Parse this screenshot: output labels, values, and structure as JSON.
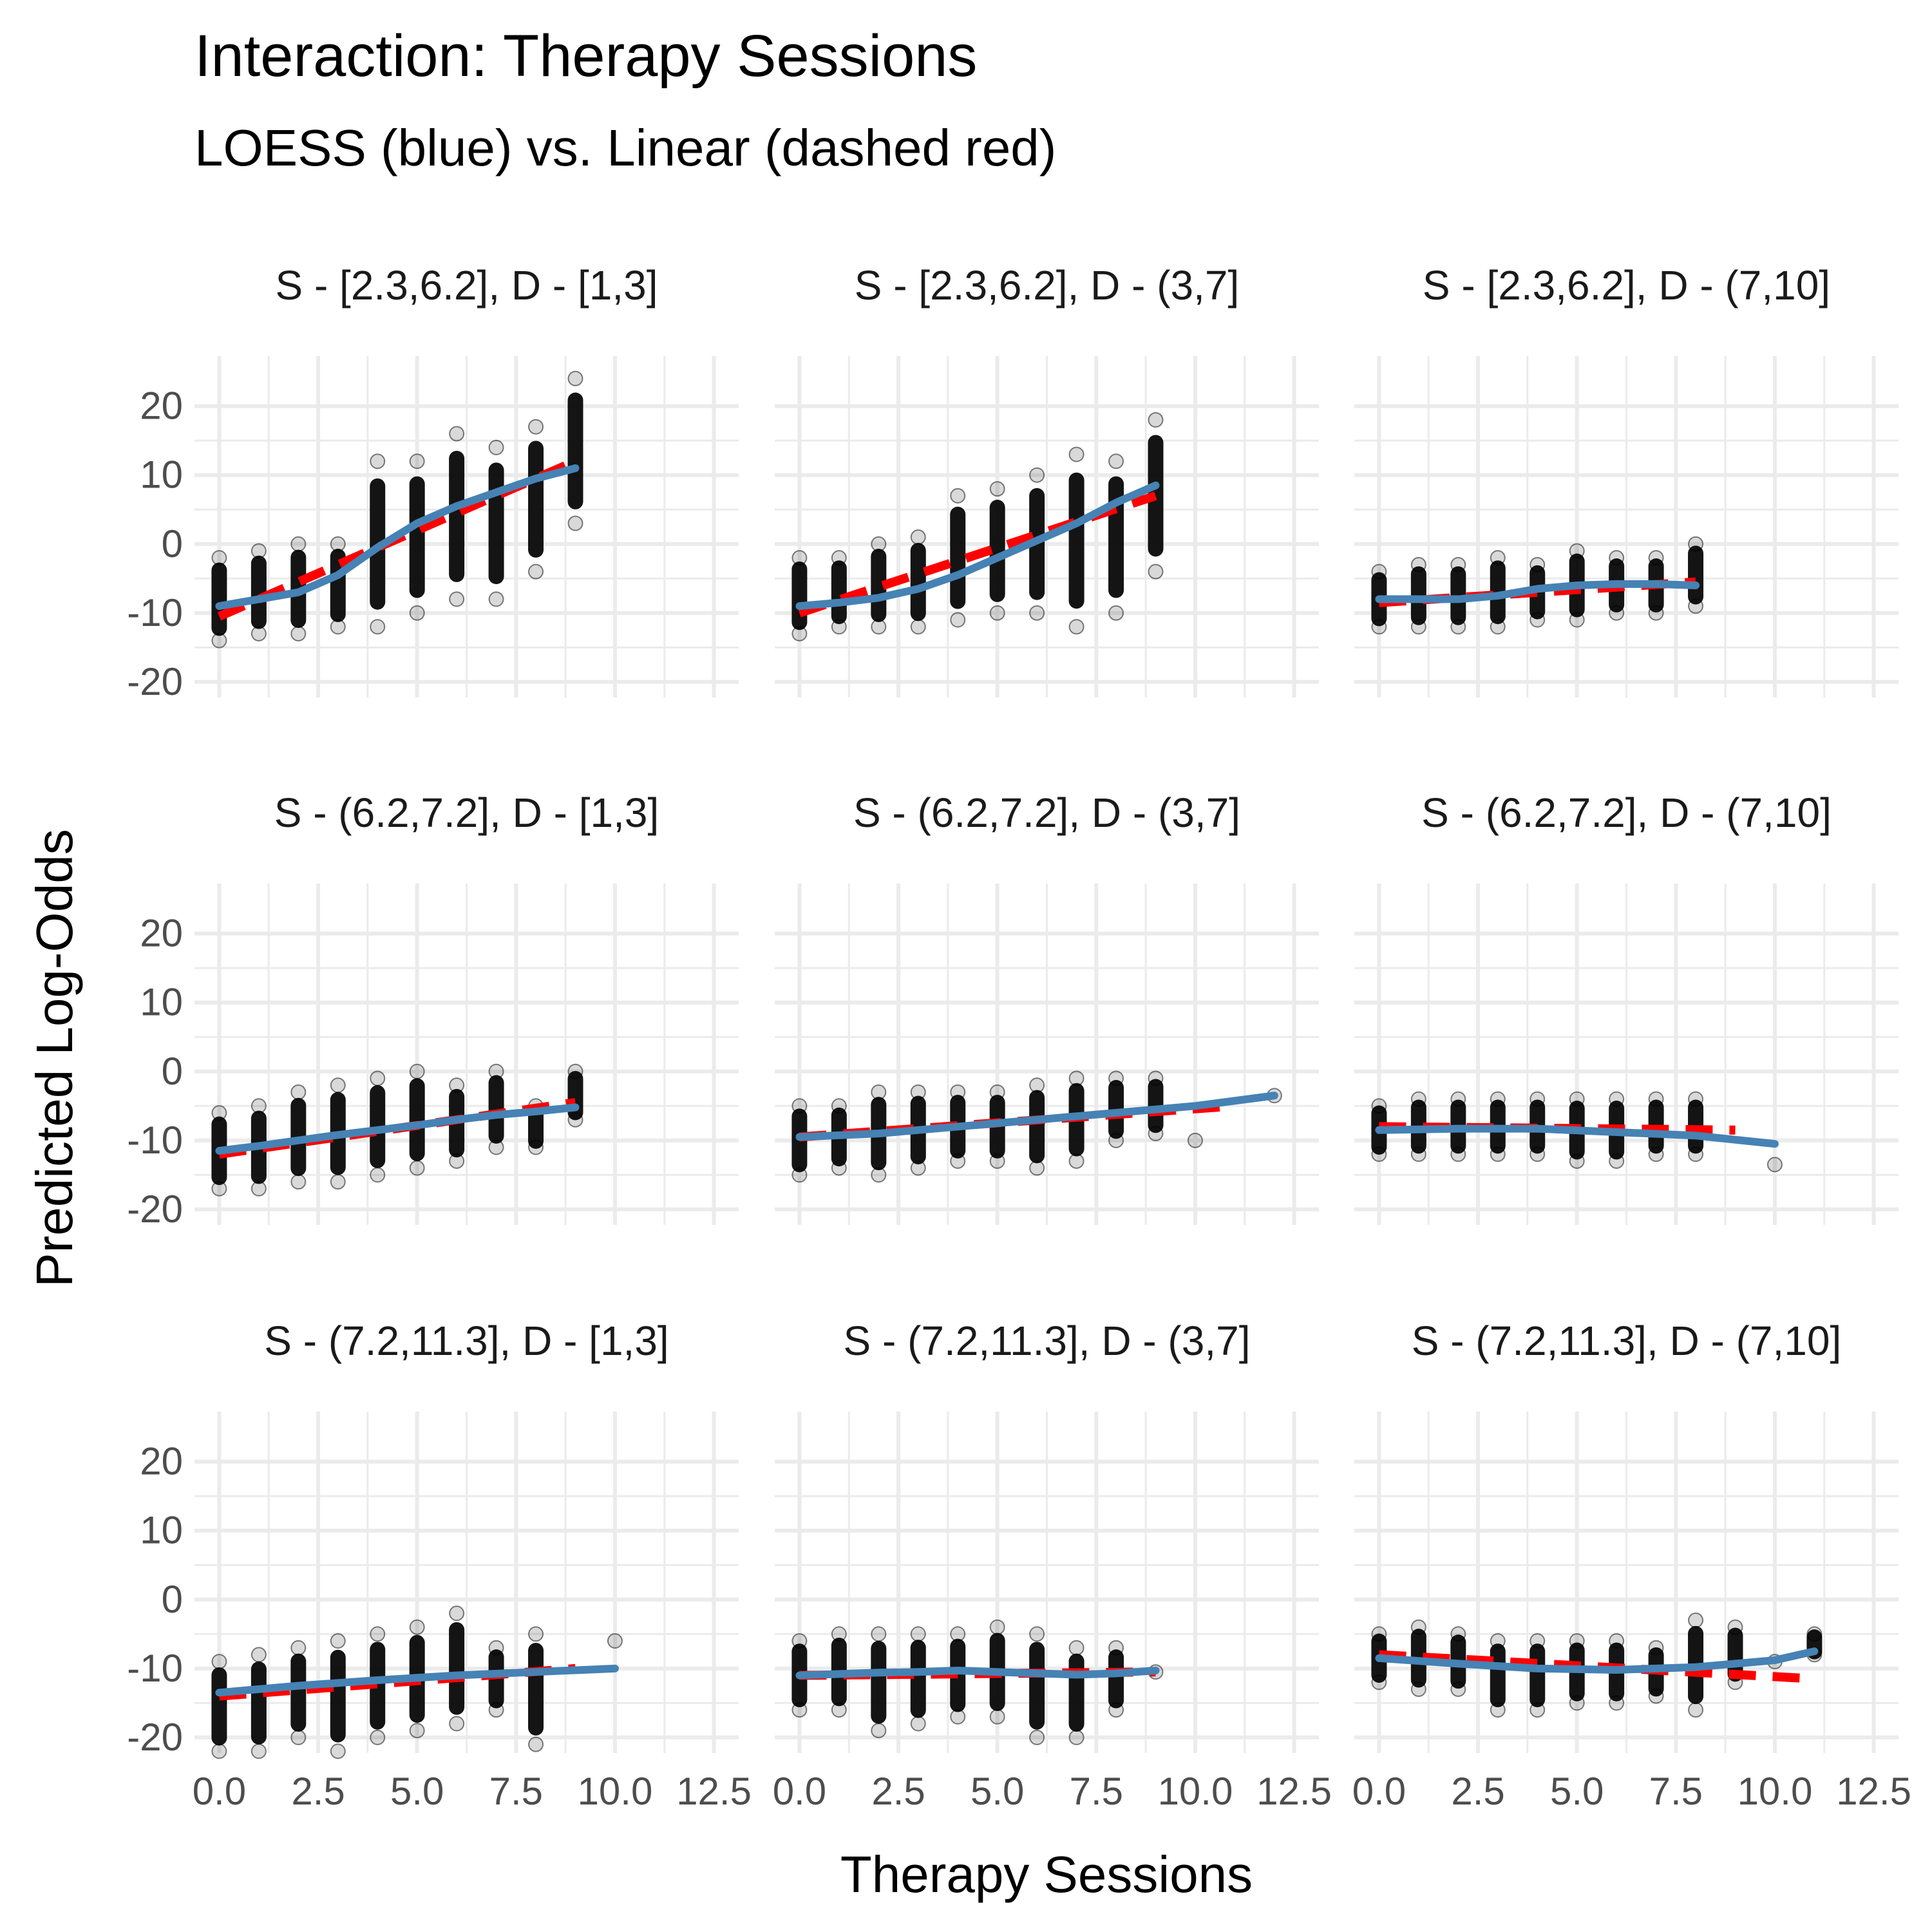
{
  "chart_data": {
    "type": "scatter",
    "title": "Interaction: Therapy Sessions",
    "subtitle": "LOESS (blue) vs. Linear (dashed red)",
    "xlabel": "Therapy Sessions",
    "ylabel": "Predicted Log-Odds",
    "xlim": [
      0,
      12.5
    ],
    "ylim": [
      -20,
      25
    ],
    "x_ticks": [
      "0.0",
      "2.5",
      "5.0",
      "7.5",
      "10.0",
      "12.5"
    ],
    "y_ticks": [
      "20",
      "10",
      "0",
      "-10",
      "-20"
    ],
    "grid": true,
    "colors": {
      "points": "#000000",
      "loess": "#4682b4",
      "linear": "#ff0000",
      "grid": "#ebebeb"
    },
    "facets": [
      {
        "label": "S - [2.3,6.2], D - [1,3]",
        "points": [
          [
            0,
            -14
          ],
          [
            0,
            -2
          ],
          [
            1,
            -13
          ],
          [
            1,
            -1
          ],
          [
            2,
            -13
          ],
          [
            2,
            0
          ],
          [
            3,
            -12
          ],
          [
            3,
            0
          ],
          [
            4,
            -12
          ],
          [
            4,
            12
          ],
          [
            5,
            -10
          ],
          [
            5,
            12
          ],
          [
            6,
            -8
          ],
          [
            6,
            16
          ],
          [
            7,
            -8
          ],
          [
            7,
            14
          ],
          [
            8,
            -4
          ],
          [
            8,
            17
          ],
          [
            9,
            3
          ],
          [
            9,
            24
          ]
        ],
        "loess": [
          [
            0,
            -9
          ],
          [
            1,
            -8
          ],
          [
            2,
            -7
          ],
          [
            3,
            -4.5
          ],
          [
            4,
            -0.5
          ],
          [
            5,
            3
          ],
          [
            6,
            5.5
          ],
          [
            7,
            7.5
          ],
          [
            8,
            9.5
          ],
          [
            9,
            11
          ]
        ],
        "linear": [
          [
            0,
            -10.5
          ],
          [
            9,
            12
          ]
        ]
      },
      {
        "label": "S - [2.3,6.2], D - (3,7]",
        "points": [
          [
            0,
            -13
          ],
          [
            0,
            -2
          ],
          [
            1,
            -12
          ],
          [
            1,
            -2
          ],
          [
            2,
            -12
          ],
          [
            2,
            0
          ],
          [
            3,
            -12
          ],
          [
            3,
            1
          ],
          [
            4,
            -11
          ],
          [
            4,
            7
          ],
          [
            5,
            -10
          ],
          [
            5,
            8
          ],
          [
            6,
            -10
          ],
          [
            6,
            10
          ],
          [
            7,
            -12
          ],
          [
            7,
            13
          ],
          [
            8,
            -10
          ],
          [
            8,
            12
          ],
          [
            9,
            -4
          ],
          [
            9,
            18
          ]
        ],
        "loess": [
          [
            0,
            -9
          ],
          [
            1,
            -8.5
          ],
          [
            2,
            -7.8
          ],
          [
            3,
            -6.5
          ],
          [
            4,
            -4.5
          ],
          [
            5,
            -2
          ],
          [
            6,
            0.5
          ],
          [
            7,
            3
          ],
          [
            8,
            6
          ],
          [
            9,
            8.5
          ]
        ],
        "linear": [
          [
            0,
            -10
          ],
          [
            9,
            7
          ]
        ]
      },
      {
        "label": "S - [2.3,6.2], D - (7,10]",
        "points": [
          [
            0,
            -12
          ],
          [
            0,
            -4
          ],
          [
            1,
            -12
          ],
          [
            1,
            -3
          ],
          [
            2,
            -12
          ],
          [
            2,
            -3
          ],
          [
            3,
            -12
          ],
          [
            3,
            -2
          ],
          [
            4,
            -11
          ],
          [
            4,
            -3
          ],
          [
            5,
            -11
          ],
          [
            5,
            -1
          ],
          [
            6,
            -10
          ],
          [
            6,
            -2
          ],
          [
            7,
            -10
          ],
          [
            7,
            -2
          ],
          [
            8,
            -9
          ],
          [
            8,
            0
          ]
        ],
        "loess": [
          [
            0,
            -8
          ],
          [
            1,
            -8
          ],
          [
            2,
            -8
          ],
          [
            3,
            -7.5
          ],
          [
            4,
            -6.5
          ],
          [
            5,
            -6
          ],
          [
            6,
            -5.8
          ],
          [
            7,
            -5.8
          ],
          [
            8,
            -6
          ]
        ],
        "linear": [
          [
            0,
            -8.5
          ],
          [
            8,
            -5.5
          ]
        ]
      },
      {
        "label": "S - (6.2,7.2], D - [1,3]",
        "points": [
          [
            0,
            -17
          ],
          [
            0,
            -6
          ],
          [
            1,
            -17
          ],
          [
            1,
            -5
          ],
          [
            2,
            -16
          ],
          [
            2,
            -3
          ],
          [
            3,
            -16
          ],
          [
            3,
            -2
          ],
          [
            4,
            -15
          ],
          [
            4,
            -1
          ],
          [
            5,
            -14
          ],
          [
            5,
            0
          ],
          [
            6,
            -13
          ],
          [
            6,
            -2
          ],
          [
            7,
            -11
          ],
          [
            7,
            0
          ],
          [
            8,
            -11
          ],
          [
            8,
            -5
          ],
          [
            9,
            -7
          ],
          [
            9,
            0
          ]
        ],
        "loess": [
          [
            0,
            -11.5
          ],
          [
            1,
            -10.8
          ],
          [
            2,
            -10
          ],
          [
            3,
            -9.2
          ],
          [
            4,
            -8.5
          ],
          [
            5,
            -7.8
          ],
          [
            6,
            -7
          ],
          [
            7,
            -6.3
          ],
          [
            8,
            -5.8
          ],
          [
            9,
            -5.2
          ]
        ],
        "linear": [
          [
            0,
            -12
          ],
          [
            9,
            -4.5
          ]
        ]
      },
      {
        "label": "S - (6.2,7.2], D - (3,7]",
        "points": [
          [
            0,
            -15
          ],
          [
            0,
            -5
          ],
          [
            1,
            -14
          ],
          [
            1,
            -5
          ],
          [
            2,
            -15
          ],
          [
            2,
            -3
          ],
          [
            3,
            -14
          ],
          [
            3,
            -3
          ],
          [
            4,
            -13
          ],
          [
            4,
            -3
          ],
          [
            5,
            -13
          ],
          [
            5,
            -3
          ],
          [
            6,
            -14
          ],
          [
            6,
            -2
          ],
          [
            7,
            -13
          ],
          [
            7,
            -1
          ],
          [
            8,
            -10
          ],
          [
            8,
            -1
          ],
          [
            9,
            -9
          ],
          [
            9,
            -1
          ],
          [
            10,
            -10
          ],
          [
            12,
            -3.5
          ]
        ],
        "loess": [
          [
            0,
            -9.5
          ],
          [
            2,
            -9
          ],
          [
            4,
            -8
          ],
          [
            6,
            -7
          ],
          [
            8,
            -6
          ],
          [
            10,
            -5
          ],
          [
            12,
            -3.5
          ]
        ],
        "linear": [
          [
            0,
            -9.5
          ],
          [
            11,
            -5
          ]
        ]
      },
      {
        "label": "S - (6.2,7.2], D - (7,10]",
        "points": [
          [
            0,
            -12
          ],
          [
            0,
            -5
          ],
          [
            1,
            -12
          ],
          [
            1,
            -4
          ],
          [
            2,
            -12
          ],
          [
            2,
            -4
          ],
          [
            3,
            -12
          ],
          [
            3,
            -4
          ],
          [
            4,
            -12
          ],
          [
            4,
            -4
          ],
          [
            5,
            -13
          ],
          [
            5,
            -4
          ],
          [
            6,
            -13
          ],
          [
            6,
            -4
          ],
          [
            7,
            -12
          ],
          [
            7,
            -4
          ],
          [
            8,
            -12
          ],
          [
            8,
            -4
          ],
          [
            10,
            -13.5
          ]
        ],
        "loess": [
          [
            0,
            -8.5
          ],
          [
            2,
            -8.3
          ],
          [
            4,
            -8.3
          ],
          [
            6,
            -8.8
          ],
          [
            8,
            -9.3
          ],
          [
            10,
            -10.5
          ]
        ],
        "linear": [
          [
            0,
            -8
          ],
          [
            9,
            -8.5
          ]
        ]
      },
      {
        "label": "S - (7.2,11.3], D - [1,3]",
        "points": [
          [
            0,
            -22
          ],
          [
            0,
            -9
          ],
          [
            1,
            -22
          ],
          [
            1,
            -8
          ],
          [
            2,
            -20
          ],
          [
            2,
            -7
          ],
          [
            3,
            -22
          ],
          [
            3,
            -6
          ],
          [
            4,
            -20
          ],
          [
            4,
            -5
          ],
          [
            5,
            -19
          ],
          [
            5,
            -4
          ],
          [
            6,
            -18
          ],
          [
            6,
            -2
          ],
          [
            7,
            -16
          ],
          [
            7,
            -7
          ],
          [
            8,
            -21
          ],
          [
            8,
            -5
          ],
          [
            10,
            -6
          ]
        ],
        "loess": [
          [
            0,
            -13.5
          ],
          [
            2,
            -12.5
          ],
          [
            4,
            -11.7
          ],
          [
            6,
            -11
          ],
          [
            8,
            -10.5
          ],
          [
            10,
            -10
          ]
        ],
        "linear": [
          [
            0,
            -14
          ],
          [
            9,
            -10
          ]
        ]
      },
      {
        "label": "S - (7.2,11.3], D - (3,7]",
        "points": [
          [
            0,
            -16
          ],
          [
            0,
            -6
          ],
          [
            1,
            -16
          ],
          [
            1,
            -5
          ],
          [
            2,
            -19
          ],
          [
            2,
            -5
          ],
          [
            3,
            -18
          ],
          [
            3,
            -5
          ],
          [
            4,
            -17
          ],
          [
            4,
            -5
          ],
          [
            5,
            -17
          ],
          [
            5,
            -4
          ],
          [
            6,
            -20
          ],
          [
            6,
            -5
          ],
          [
            7,
            -20
          ],
          [
            7,
            -7
          ],
          [
            8,
            -16
          ],
          [
            8,
            -7
          ],
          [
            9,
            -10.5
          ]
        ],
        "loess": [
          [
            0,
            -11
          ],
          [
            1,
            -10.8
          ],
          [
            2,
            -10.6
          ],
          [
            3,
            -10.5
          ],
          [
            4,
            -10.3
          ],
          [
            5,
            -10.5
          ],
          [
            6,
            -10.7
          ],
          [
            7,
            -10.9
          ],
          [
            8,
            -10.7
          ],
          [
            9,
            -10.3
          ]
        ],
        "linear": [
          [
            0,
            -11
          ],
          [
            9,
            -10.5
          ]
        ]
      },
      {
        "label": "S - (7.2,11.3], D - (7,10]",
        "points": [
          [
            0,
            -12
          ],
          [
            0,
            -5
          ],
          [
            1,
            -13
          ],
          [
            1,
            -4
          ],
          [
            2,
            -13
          ],
          [
            2,
            -5
          ],
          [
            3,
            -16
          ],
          [
            3,
            -6
          ],
          [
            4,
            -16
          ],
          [
            4,
            -6
          ],
          [
            5,
            -15
          ],
          [
            5,
            -6
          ],
          [
            6,
            -15
          ],
          [
            6,
            -6
          ],
          [
            7,
            -14
          ],
          [
            7,
            -7
          ],
          [
            8,
            -16
          ],
          [
            8,
            -3
          ],
          [
            9,
            -12
          ],
          [
            9,
            -4
          ],
          [
            10,
            -9
          ],
          [
            11,
            -8
          ],
          [
            11,
            -5
          ]
        ],
        "loess": [
          [
            0,
            -8.5
          ],
          [
            2,
            -9.3
          ],
          [
            4,
            -10
          ],
          [
            6,
            -10.2
          ],
          [
            8,
            -9.8
          ],
          [
            10,
            -8.8
          ],
          [
            11,
            -7.5
          ]
        ],
        "linear": [
          [
            0,
            -8
          ],
          [
            11,
            -11.5
          ]
        ]
      }
    ]
  }
}
